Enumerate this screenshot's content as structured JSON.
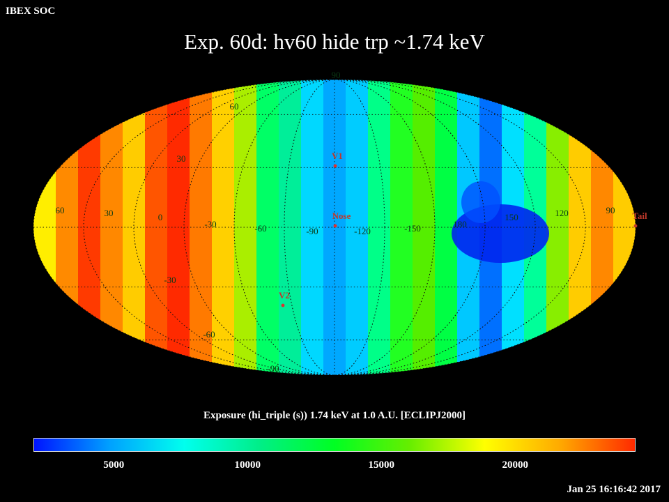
{
  "header": {
    "org": "IBEX SOC",
    "title": "Exp.   60d: hv60 hide trp ~1.74 keV"
  },
  "map": {
    "projection": "Mollweide",
    "longitude_labels": [
      "60",
      "30",
      "0",
      "-30",
      "-60",
      "-90",
      "-120",
      "-150",
      "180",
      "150",
      "120",
      "90"
    ],
    "latitude_labels": [
      "90",
      "60",
      "30",
      "-30",
      "-60",
      "-90"
    ],
    "markers": [
      {
        "id": "V1",
        "label": "V1",
        "color": "#e03030"
      },
      {
        "id": "Nose",
        "label": "Nose",
        "color": "#e03030"
      },
      {
        "id": "V2",
        "label": "V2",
        "color": "#e03030"
      },
      {
        "id": "Tail",
        "label": "Tail",
        "color": "#c0392b"
      }
    ],
    "grid_color": "#111111"
  },
  "colorbar": {
    "label": "Exposure (hi_triple (s))  1.74 keV at 1.0 A.U. [ECLIPJ2000]",
    "min": 2000,
    "max": 24500,
    "ticks": [
      "5000",
      "10000",
      "15000",
      "20000"
    ],
    "tick_values": [
      5000,
      10000,
      15000,
      20000
    ],
    "stops": [
      "#0014ff",
      "#00a0ff",
      "#00ffee",
      "#00ee88",
      "#00ff22",
      "#66ee00",
      "#ffff00",
      "#ffaa00",
      "#ff2a00"
    ]
  },
  "footer": {
    "timestamp": "Jan 25 16:16:42 2017"
  }
}
